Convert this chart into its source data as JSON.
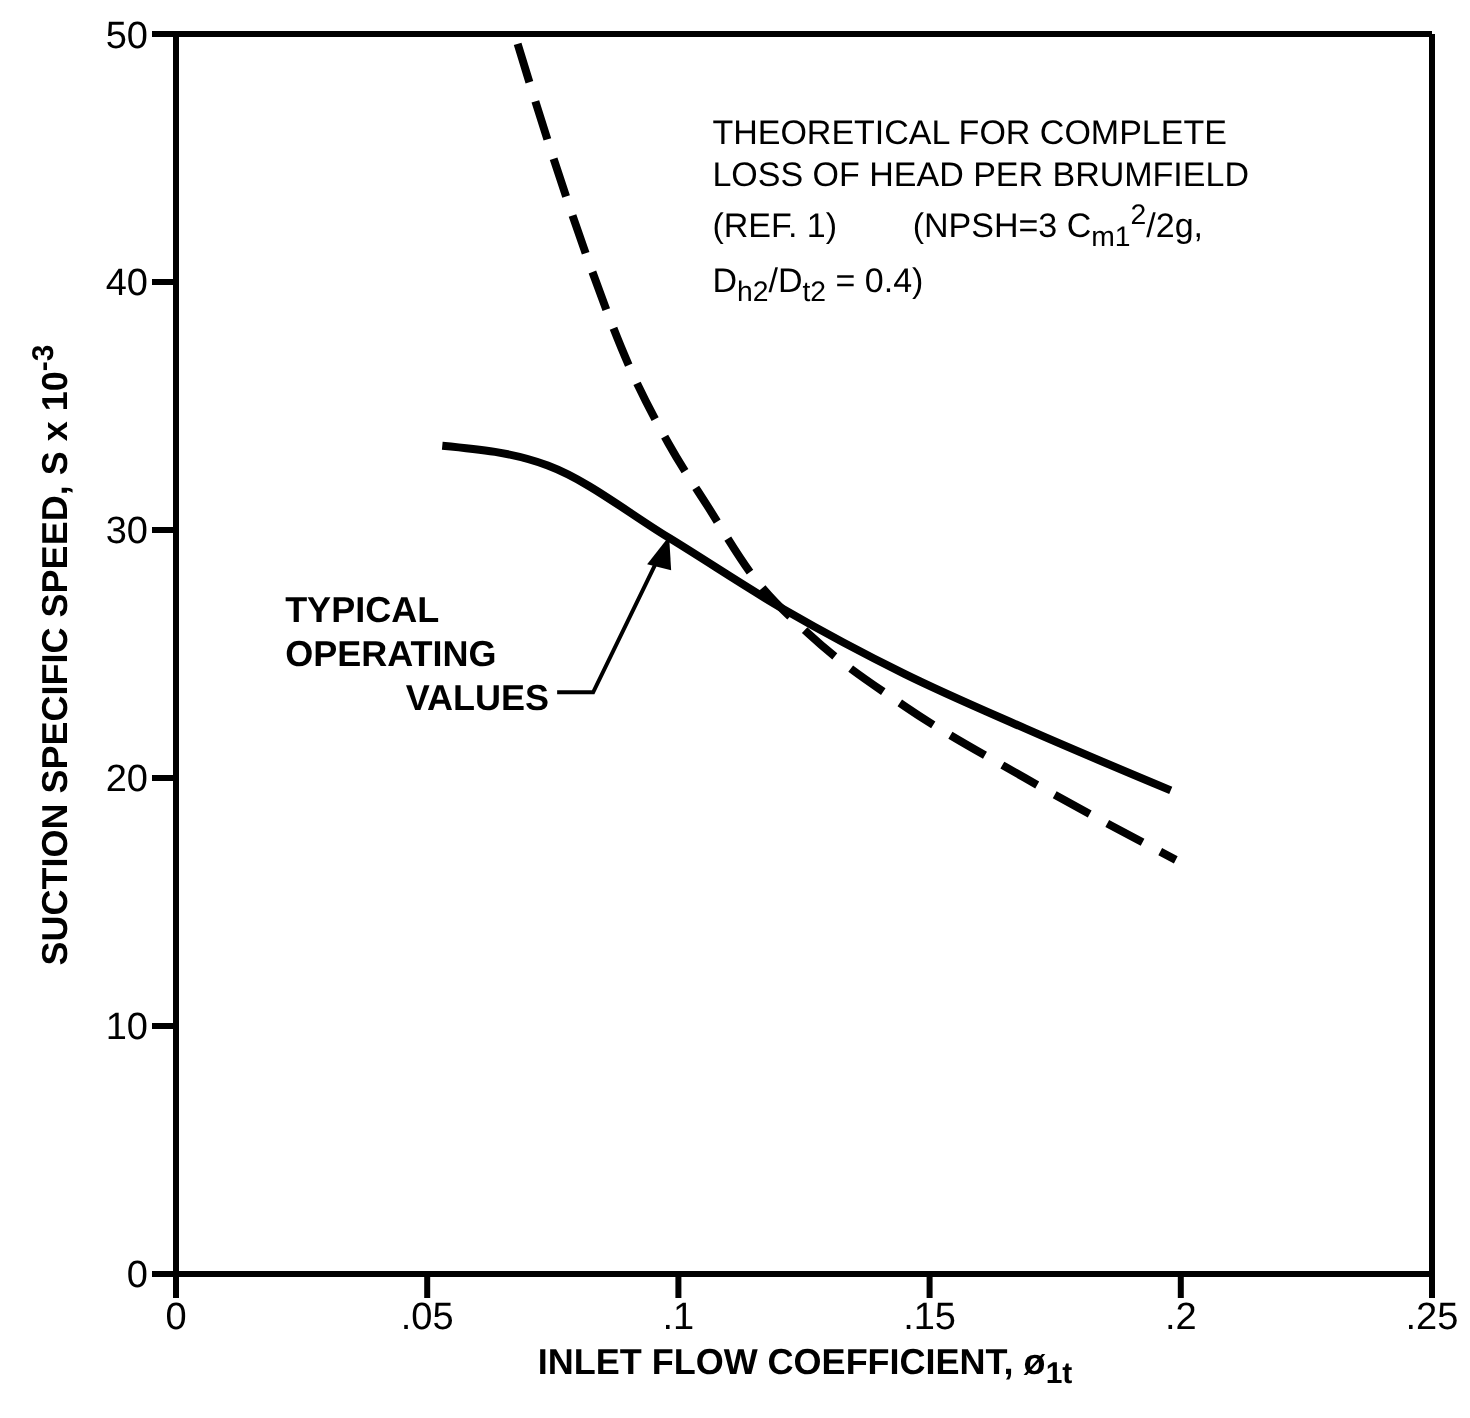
{
  "chart_data": {
    "type": "line",
    "xlabel": "INLET FLOW COEFFICIENT, ø$_{1t}$",
    "ylabel": "SUCTION SPECIFIC SPEED, S x 10$^{-3}$",
    "xlim": [
      0,
      0.25
    ],
    "xticks": [
      {
        "value": 0,
        "label": "0"
      },
      {
        "value": 0.05,
        "label": ".05"
      },
      {
        "value": 0.1,
        "label": ".1"
      },
      {
        "value": 0.15,
        "label": ".15"
      },
      {
        "value": 0.2,
        "label": ".2"
      },
      {
        "value": 0.25,
        "label": ".25"
      }
    ],
    "ylim": [
      0,
      50
    ],
    "yticks": [
      0,
      10,
      20,
      30,
      40,
      50
    ],
    "marker": "none",
    "series": [
      {
        "color": "#000000",
        "line_style": "solid",
        "x": [
          0.053,
          0.074,
          0.098,
          0.121,
          0.145,
          0.169,
          0.198
        ],
        "values": [
          33.4,
          32.6,
          29.7,
          26.8,
          24.2,
          22.0,
          19.5
        ]
      },
      {
        "color": "#000000",
        "line_style": "dashed",
        "x": [
          0.068,
          0.074,
          0.082,
          0.09,
          0.098,
          0.106,
          0.115,
          0.126,
          0.145,
          0.169,
          0.199
        ],
        "values": [
          49.6,
          45.7,
          40.9,
          36.7,
          33.5,
          30.9,
          28.1,
          25.8,
          22.9,
          20.0,
          16.7
        ]
      }
    ],
    "annotations": [
      {
        "text": "TYPICAL\nOPERATING\nVALUES",
        "x": 0.098,
        "y": 29.7
      },
      "THEORETICAL FOR COMPLETE\nLOSS OF HEAD PER BRUMFIELD\n(REF. 1)        (NPSH=3 C$_{m1}$$^{2}$/2g,\nD$_{h2}$/D$_{t2}$ = 0.4)"
    ]
  }
}
